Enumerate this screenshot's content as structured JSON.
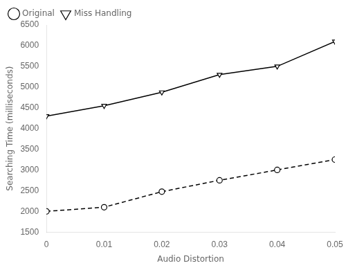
{
  "chart_data": {
    "type": "line",
    "x": [
      0,
      0.01,
      0.02,
      0.03,
      0.04,
      0.05
    ],
    "series": [
      {
        "name": "Original",
        "color": "#000000",
        "marker": "circle",
        "line_style": "dashed",
        "values": [
          2000,
          2100,
          2475,
          2750,
          3000,
          3250
        ]
      },
      {
        "name": "Miss Handling",
        "color": "#000000",
        "marker": "triangle-down",
        "line_style": "solid",
        "values": [
          4300,
          4550,
          4875,
          5300,
          5500,
          6100
        ]
      }
    ],
    "xlabel": "Audio Distortion",
    "ylabel": "Searching Time (milliseconds)",
    "xlim": [
      0,
      0.05
    ],
    "ylim": [
      1500,
      6500
    ],
    "xticks": [
      0,
      0.01,
      0.02,
      0.03,
      0.04,
      0.05
    ],
    "yticks": [
      1500,
      2000,
      2500,
      3000,
      3500,
      4000,
      4500,
      5000,
      5500,
      6000,
      6500
    ],
    "legend": "upper left",
    "grid": false
  }
}
